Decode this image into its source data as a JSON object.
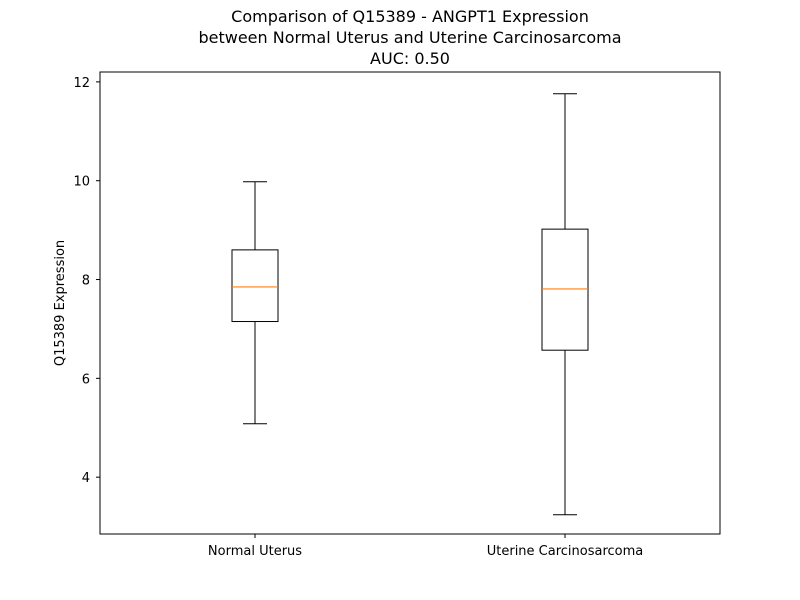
{
  "chart_data": {
    "type": "box",
    "title_lines": [
      "Comparison of Q15389 - ANGPT1 Expression",
      "between Normal Uterus and Uterine Carcinosarcoma",
      "AUC: 0.50"
    ],
    "xlabel": "",
    "ylabel": "Q15389 Expression",
    "ylim": [
      2.85,
      12.2
    ],
    "yticks": [
      4,
      6,
      8,
      10,
      12
    ],
    "grid": false,
    "categories": [
      "Normal Uterus",
      "Uterine Carcinosarcoma"
    ],
    "boxes": [
      {
        "category": "Normal Uterus",
        "whisker_low": 5.08,
        "q1": 7.15,
        "median": 7.85,
        "q3": 8.6,
        "whisker_high": 9.98
      },
      {
        "category": "Uterine Carcinosarcoma",
        "whisker_low": 3.24,
        "q1": 6.57,
        "median": 7.81,
        "q3": 9.02,
        "whisker_high": 11.76
      }
    ],
    "colors": {
      "box": "#000000",
      "median": "#ff7f0e",
      "whisker": "#000000"
    }
  }
}
